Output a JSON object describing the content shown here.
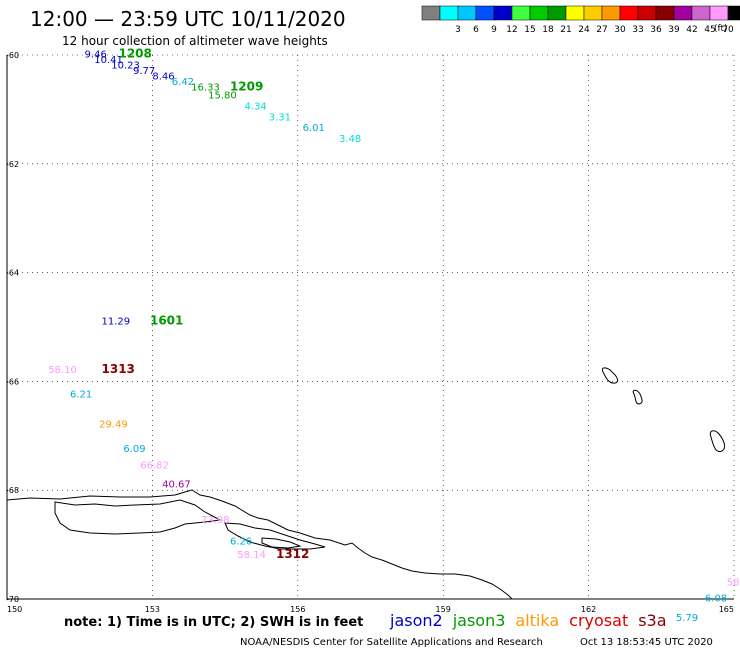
{
  "header": {
    "title": "12:00 — 23:59 UTC 10/11/2020",
    "subtitle": "12 hour collection of altimeter wave heights"
  },
  "color_scale": {
    "unit_label": "(ft)",
    "swatches": [
      {
        "label": "",
        "color": "#808080"
      },
      {
        "label": "3",
        "color": "#00ffff"
      },
      {
        "label": "6",
        "color": "#00c8ff"
      },
      {
        "label": "9",
        "color": "#0050ff"
      },
      {
        "label": "12",
        "color": "#0000cc"
      },
      {
        "label": "15",
        "color": "#40ff40"
      },
      {
        "label": "18",
        "color": "#00cc00"
      },
      {
        "label": "21",
        "color": "#009a00"
      },
      {
        "label": "24",
        "color": "#ffff00"
      },
      {
        "label": "27",
        "color": "#ffcc00"
      },
      {
        "label": "30",
        "color": "#ff9900"
      },
      {
        "label": "33",
        "color": "#ff0000"
      },
      {
        "label": "36",
        "color": "#cc0000"
      },
      {
        "label": "39",
        "color": "#880000"
      },
      {
        "label": "42",
        "color": "#a000a0"
      },
      {
        "label": "45",
        "color": "#cc66cc"
      },
      {
        "label": "70",
        "color": "#ff99ff"
      },
      {
        "label": "",
        "color": "#000000"
      }
    ]
  },
  "map": {
    "lat_labels": [
      {
        "label": "-60",
        "lat": -60
      },
      {
        "label": "-62",
        "lat": -62
      },
      {
        "label": "-64",
        "lat": -64
      },
      {
        "label": "-66",
        "lat": -66
      },
      {
        "label": "-68",
        "lat": -68
      },
      {
        "label": "-70",
        "lat": -70
      }
    ],
    "lon_labels": [
      {
        "label": "150",
        "lon": 150
      },
      {
        "label": "153",
        "lon": 153
      },
      {
        "label": "156",
        "lon": 156
      },
      {
        "label": "159",
        "lon": 159
      },
      {
        "label": "162",
        "lon": 162
      },
      {
        "label": "165",
        "lon": 165
      }
    ],
    "lon_range": [
      150,
      165
    ],
    "lat_range": [
      -60,
      -70
    ],
    "observations": [
      {
        "text": "9.46",
        "lon": 151.6,
        "lat": -60.05,
        "color": "#0000cc"
      },
      {
        "text": "1208",
        "lon": 152.3,
        "lat": -60.05,
        "color": "#009a00",
        "time": true
      },
      {
        "text": "10.41",
        "lon": 151.8,
        "lat": -60.15,
        "color": "#0000cc"
      },
      {
        "text": "10.23",
        "lon": 152.15,
        "lat": -60.25,
        "color": "#0000cc"
      },
      {
        "text": "9.77",
        "lon": 152.6,
        "lat": -60.35,
        "color": "#0000cc"
      },
      {
        "text": "8.46",
        "lon": 153.0,
        "lat": -60.45,
        "color": "#0000cc"
      },
      {
        "text": "6.42",
        "lon": 153.4,
        "lat": -60.55,
        "color": "#00aadd"
      },
      {
        "text": "16.33",
        "lon": 153.8,
        "lat": -60.65,
        "color": "#009a00"
      },
      {
        "text": "1209",
        "lon": 154.6,
        "lat": -60.65,
        "color": "#009a00",
        "time": true
      },
      {
        "text": "15.80",
        "lon": 154.15,
        "lat": -60.8,
        "color": "#009a00"
      },
      {
        "text": "4.34",
        "lon": 154.9,
        "lat": -61.0,
        "color": "#00dddd"
      },
      {
        "text": "3.31",
        "lon": 155.4,
        "lat": -61.2,
        "color": "#00dddd"
      },
      {
        "text": "6.01",
        "lon": 156.1,
        "lat": -61.4,
        "color": "#00aadd"
      },
      {
        "text": "3.48",
        "lon": 156.85,
        "lat": -61.6,
        "color": "#00dddd"
      },
      {
        "text": "11.29",
        "lon": 151.95,
        "lat": -64.95,
        "color": "#0000cc"
      },
      {
        "text": "1601",
        "lon": 152.95,
        "lat": -64.95,
        "color": "#009a00",
        "time": true
      },
      {
        "text": "58.10",
        "lon": 150.85,
        "lat": -65.85,
        "color": "#ff99ff"
      },
      {
        "text": "1313",
        "lon": 151.95,
        "lat": -65.85,
        "color": "#880000",
        "time": true
      },
      {
        "text": "6.21",
        "lon": 151.3,
        "lat": -66.3,
        "color": "#00aadd"
      },
      {
        "text": "29.49",
        "lon": 151.9,
        "lat": -66.85,
        "color": "#ff9900"
      },
      {
        "text": "6.09",
        "lon": 152.4,
        "lat": -67.3,
        "color": "#00aadd"
      },
      {
        "text": "66.82",
        "lon": 152.75,
        "lat": -67.6,
        "color": "#ff99ff"
      },
      {
        "text": "40.67",
        "lon": 153.2,
        "lat": -67.95,
        "color": "#a000a0"
      },
      {
        "text": "73.98",
        "lon": 154.0,
        "lat": -68.6,
        "color": "#ff99ff"
      },
      {
        "text": "6.26",
        "lon": 154.6,
        "lat": -69.0,
        "color": "#00aadd"
      },
      {
        "text": "58.14",
        "lon": 154.75,
        "lat": -69.25,
        "color": "#ff99ff"
      },
      {
        "text": "1312",
        "lon": 155.55,
        "lat": -69.25,
        "color": "#880000",
        "time": true
      },
      {
        "text": "58",
        "lon": 164.85,
        "lat": -69.75,
        "color": "#ff99ff"
      },
      {
        "text": "6.08",
        "lon": 164.4,
        "lat": -70.05,
        "color": "#00aadd"
      },
      {
        "text": "5.79",
        "lon": 163.8,
        "lat": -70.4,
        "color": "#00aadd"
      }
    ]
  },
  "footer": {
    "note": "note: 1) Time is in UTC; 2) SWH is in feet",
    "satellites": [
      {
        "name": "jason2",
        "color": "#0000cc"
      },
      {
        "name": "jason3",
        "color": "#009a00"
      },
      {
        "name": "altika",
        "color": "#ff9900"
      },
      {
        "name": "cryosat",
        "color": "#dd0000"
      },
      {
        "name": "s3a",
        "color": "#880000"
      }
    ],
    "credit": "NOAA/NESDIS Center for Satellite Applications and Research",
    "timestamp": "Oct 13 18:53:45 UTC 2020"
  }
}
